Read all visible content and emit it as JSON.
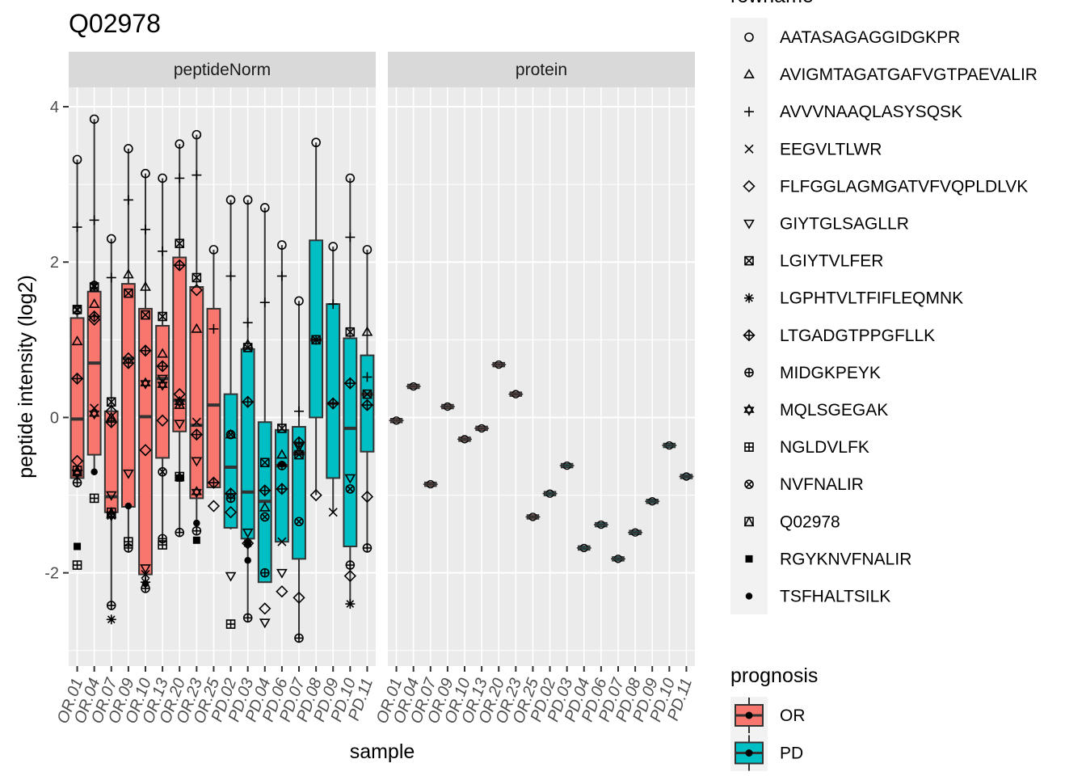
{
  "chart_data": {
    "type": "boxplot",
    "title": "Q02978",
    "xlabel": "sample",
    "ylabel": "peptide intensity (log2)",
    "ylim": [
      -3.2,
      4.25
    ],
    "y_ticks": [
      -2,
      0,
      2,
      4
    ],
    "panels": [
      "peptideNorm",
      "protein"
    ],
    "samples": [
      "OR.01",
      "OR.04",
      "OR.07",
      "OR.09",
      "OR.10",
      "OR.13",
      "OR.20",
      "OR.23",
      "OR.25",
      "PD.02",
      "PD.03",
      "PD.04",
      "PD.06",
      "PD.07",
      "PD.08",
      "PD.09",
      "PD.10",
      "PD.11"
    ],
    "prognosis": [
      "OR",
      "OR",
      "OR",
      "OR",
      "OR",
      "OR",
      "OR",
      "OR",
      "OR",
      "PD",
      "PD",
      "PD",
      "PD",
      "PD",
      "PD",
      "PD",
      "PD",
      "PD"
    ],
    "peptides": [
      "AATASAGAGGIDGKPR",
      "AVIGMTAGATGAFVGTPAEVALIR",
      "AVVVNAAQLASYSQSK",
      "EEGVLTLWR",
      "FLFGGLAGMGATVFVQPLDLVK",
      "GIYTGLSAGLLR",
      "LGIYTVLFER",
      "LGPHTVLTFIFLEQMNK",
      "LTGADGTPPGFLLK",
      "MIDGKPEYK",
      "MQLSGEGAK",
      "NGLDVLFK",
      "NVFNALIR",
      "Q02978",
      "RGYKNVFNALIR",
      "TSFHALTSILK"
    ],
    "boxes": [
      {
        "sample": "OR.01",
        "q1": -0.78,
        "median": -0.02,
        "q3": 1.28,
        "lower": -0.82,
        "upper": 3.32
      },
      {
        "sample": "OR.04",
        "q1": -0.48,
        "median": 0.7,
        "q3": 1.62,
        "lower": -0.72,
        "upper": 3.84
      },
      {
        "sample": "OR.07",
        "q1": -1.22,
        "median": -1.02,
        "q3": 0.08,
        "lower": -2.42,
        "upper": 2.3
      },
      {
        "sample": "OR.09",
        "q1": -1.15,
        "median": 0.76,
        "q3": 1.72,
        "lower": -1.68,
        "upper": 3.46
      },
      {
        "sample": "OR.10",
        "q1": -2.02,
        "median": 0.01,
        "q3": 1.4,
        "lower": -2.2,
        "upper": 3.14
      },
      {
        "sample": "OR.13",
        "q1": -0.52,
        "median": 0.5,
        "q3": 1.18,
        "lower": -1.56,
        "upper": 3.08
      },
      {
        "sample": "OR.20",
        "q1": -0.18,
        "median": 0.22,
        "q3": 2.06,
        "lower": -1.48,
        "upper": 3.52
      },
      {
        "sample": "OR.23",
        "q1": -1.04,
        "median": -0.1,
        "q3": 1.68,
        "lower": -1.46,
        "upper": 3.64
      },
      {
        "sample": "OR.25",
        "q1": -0.9,
        "median": 0.16,
        "q3": 1.4,
        "lower": -0.9,
        "upper": 2.16
      },
      {
        "sample": "PD.02",
        "q1": -1.42,
        "median": -0.64,
        "q3": 0.3,
        "lower": -1.44,
        "upper": 2.8
      },
      {
        "sample": "PD.03",
        "q1": -1.56,
        "median": -0.96,
        "q3": 0.88,
        "lower": -2.58,
        "upper": 2.8
      },
      {
        "sample": "PD.04",
        "q1": -2.12,
        "median": -1.08,
        "q3": -0.06,
        "lower": -2.12,
        "upper": 2.7
      },
      {
        "sample": "PD.06",
        "q1": -1.6,
        "median": -0.62,
        "q3": -0.16,
        "lower": -1.6,
        "upper": 2.22
      },
      {
        "sample": "PD.07",
        "q1": -1.82,
        "median": -0.46,
        "q3": -0.12,
        "lower": -2.84,
        "upper": 1.5
      },
      {
        "sample": "PD.08",
        "q1": 0.0,
        "median": 1.0,
        "q3": 2.28,
        "lower": -1.0,
        "upper": 3.54
      },
      {
        "sample": "PD.09",
        "q1": -0.78,
        "median": 0.18,
        "q3": 1.46,
        "lower": -1.22,
        "upper": 2.2
      },
      {
        "sample": "PD.10",
        "q1": -1.66,
        "median": -0.14,
        "q3": 1.02,
        "lower": -2.4,
        "upper": 3.08
      },
      {
        "sample": "PD.11",
        "q1": -0.44,
        "median": 0.3,
        "q3": 0.8,
        "lower": -1.68,
        "upper": 2.16
      }
    ],
    "points": [
      [
        3.32,
        0.98,
        2.45,
        null,
        -0.56,
        -0.72,
        1.39,
        null,
        0.5,
        -0.84,
        -0.72,
        -1.9,
        1.38,
        -0.68,
        -1.66,
        null
      ],
      [
        3.84,
        1.46,
        2.54,
        0.12,
        1.26,
        null,
        1.68,
        null,
        1.3,
        null,
        0.05,
        -1.04,
        1.7,
        null,
        null,
        -0.7
      ],
      [
        2.3,
        0.0,
        1.8,
        -1.26,
        0.08,
        -1.0,
        0.2,
        -2.6,
        -0.06,
        -2.42,
        -1.26,
        null,
        null,
        -1.22,
        null,
        null
      ],
      [
        3.46,
        1.84,
        2.8,
        null,
        0.76,
        -0.72,
        1.6,
        null,
        0.7,
        -1.68,
        null,
        -1.6,
        null,
        null,
        null,
        -1.14
      ],
      [
        3.14,
        1.68,
        2.42,
        -2.02,
        -0.42,
        -1.94,
        1.32,
        -2.12,
        0.86,
        -2.2,
        0.44,
        null,
        null,
        null,
        null,
        -2.14
      ],
      [
        3.08,
        0.82,
        2.14,
        null,
        -0.04,
        0.5,
        1.3,
        null,
        0.66,
        -1.56,
        0.42,
        -1.64,
        -0.7,
        null,
        null,
        null
      ],
      [
        3.52,
        0.16,
        3.08,
        null,
        0.3,
        -0.08,
        2.24,
        null,
        1.96,
        -1.48,
        0.2,
        null,
        null,
        -0.76,
        -0.78,
        null
      ],
      [
        3.64,
        1.14,
        3.12,
        -0.06,
        1.64,
        -0.56,
        1.8,
        null,
        -0.22,
        -1.46,
        -0.96,
        null,
        null,
        null,
        -1.58,
        -1.36
      ],
      [
        2.16,
        null,
        1.14,
        null,
        -1.14,
        null,
        null,
        null,
        -0.84,
        null,
        null,
        null,
        null,
        null,
        null,
        null
      ],
      [
        2.8,
        -0.22,
        1.82,
        null,
        -1.22,
        -2.04,
        null,
        null,
        -0.98,
        -1.04,
        null,
        -2.66,
        -0.22,
        null,
        null,
        null
      ],
      [
        2.8,
        0.94,
        1.22,
        null,
        -1.62,
        -1.48,
        0.9,
        null,
        0.2,
        -2.58,
        null,
        null,
        null,
        null,
        -1.62,
        -1.84
      ],
      [
        2.7,
        -1.16,
        1.48,
        null,
        -2.46,
        -2.64,
        -0.58,
        null,
        -0.94,
        -2.0,
        null,
        null,
        -1.28,
        null,
        null,
        null
      ],
      [
        2.22,
        -0.48,
        1.82,
        -1.6,
        -2.24,
        -2.0,
        -0.14,
        null,
        -0.92,
        -0.62,
        null,
        null,
        null,
        null,
        null,
        -0.6
      ],
      [
        1.5,
        -0.44,
        0.08,
        null,
        -2.32,
        -0.38,
        -0.48,
        null,
        -0.32,
        -2.84,
        null,
        null,
        -1.34,
        null,
        null,
        null
      ],
      [
        3.54,
        null,
        1.0,
        null,
        -1.0,
        null,
        1.0,
        null,
        null,
        null,
        null,
        null,
        null,
        null,
        null,
        null
      ],
      [
        2.2,
        null,
        1.46,
        -1.22,
        null,
        null,
        null,
        null,
        0.18,
        null,
        null,
        null,
        null,
        null,
        null,
        null
      ],
      [
        3.08,
        null,
        2.32,
        null,
        -2.04,
        -0.78,
        1.1,
        -2.4,
        0.44,
        -1.9,
        null,
        null,
        -0.92,
        null,
        null,
        null
      ],
      [
        2.16,
        1.1,
        0.52,
        null,
        -1.02,
        null,
        0.3,
        null,
        0.16,
        -1.68,
        null,
        null,
        null,
        null,
        null,
        null
      ]
    ],
    "protein_values": [
      -0.04,
      0.4,
      -0.86,
      0.14,
      -0.28,
      -0.14,
      0.68,
      0.3,
      -1.28,
      -0.98,
      -0.62,
      -1.68,
      -1.38,
      -1.82,
      -1.48,
      -1.08,
      -0.36,
      -0.76
    ],
    "colors": {
      "OR": "#F8766D",
      "PD": "#00BFC4",
      "panel_bg": "#EBEBEB",
      "strip_bg": "#D9D9D9",
      "grid": "#FFFFFF"
    },
    "legend_shapes": {
      "title": "rowname",
      "shape_names": [
        "circle",
        "triangle",
        "plus",
        "cross",
        "diamond",
        "triangle-down",
        "square-cross",
        "asterisk",
        "diamond-plus",
        "circle-plus",
        "star-of-david",
        "square-plus",
        "circle-cross",
        "square-triangle",
        "square-filled",
        "circle-filled"
      ]
    },
    "legend_fill": {
      "title": "prognosis",
      "items": [
        "OR",
        "PD"
      ]
    }
  }
}
